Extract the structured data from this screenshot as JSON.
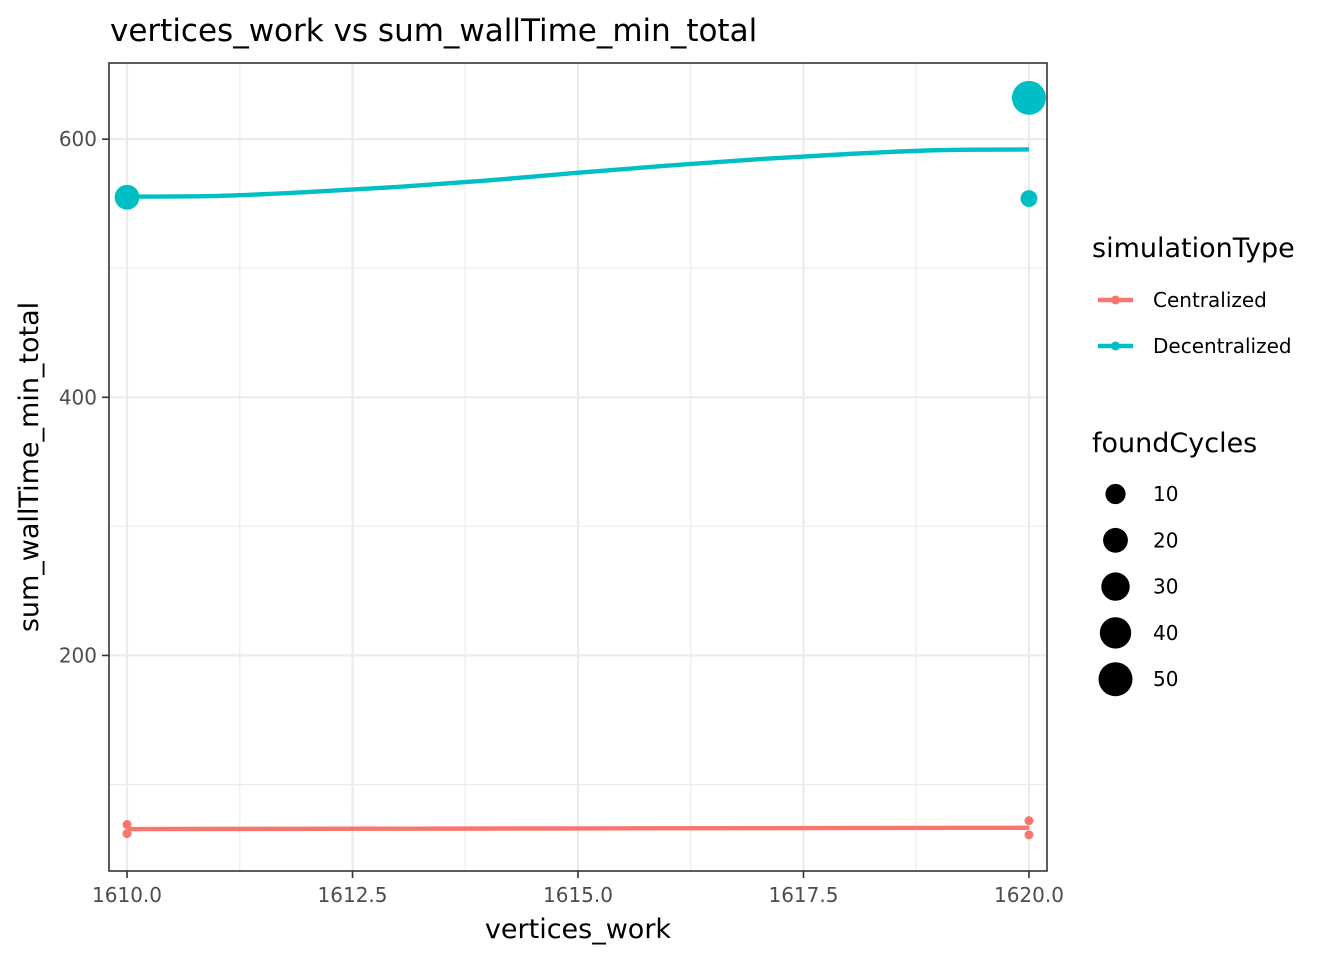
{
  "chart_data": {
    "type": "scatter",
    "title": "vertices_work  vs  sum_wallTime_min_total",
    "xlabel": "vertices_work",
    "ylabel": "sum_wallTime_min_total",
    "xlim": [
      1609.8,
      1620.2
    ],
    "ylim": [
      33,
      659
    ],
    "x_ticks": [
      1610.0,
      1612.5,
      1615.0,
      1617.5,
      1620.0
    ],
    "x_tick_labels": [
      "1610.0",
      "1612.5",
      "1615.0",
      "1617.5",
      "1620.0"
    ],
    "y_ticks": [
      200,
      400,
      600
    ],
    "y_tick_labels": [
      "200",
      "400",
      "600"
    ],
    "grid": true,
    "legend_position": "right",
    "color_legend": {
      "title": "simulationType",
      "entries": [
        {
          "label": "Centralized",
          "color": "#F8766D"
        },
        {
          "label": "Decentralized",
          "color": "#00BFC4"
        }
      ]
    },
    "size_legend": {
      "title": "foundCycles",
      "entries": [
        {
          "label": "10",
          "value": 10
        },
        {
          "label": "20",
          "value": 20
        },
        {
          "label": "30",
          "value": 30
        },
        {
          "label": "40",
          "value": 40
        },
        {
          "label": "50",
          "value": 50
        }
      ]
    },
    "series": [
      {
        "name": "Centralized",
        "color": "#F8766D",
        "points": [
          {
            "x": 1610,
            "y": 69,
            "foundCycles": 0
          },
          {
            "x": 1610,
            "y": 62,
            "foundCycles": 0
          },
          {
            "x": 1620,
            "y": 72,
            "foundCycles": 0
          },
          {
            "x": 1620,
            "y": 61,
            "foundCycles": 0
          }
        ],
        "smooth": [
          {
            "x": 1610,
            "y": 65.5
          },
          {
            "x": 1615,
            "y": 66.0
          },
          {
            "x": 1620,
            "y": 66.5
          }
        ]
      },
      {
        "name": "Decentralized",
        "color": "#00BFC4",
        "points": [
          {
            "x": 1610,
            "y": 555,
            "foundCycles": 20
          },
          {
            "x": 1620,
            "y": 632,
            "foundCycles": 50
          },
          {
            "x": 1620,
            "y": 554,
            "foundCycles": 5
          }
        ],
        "smooth": [
          {
            "x": 1610.0,
            "y": 555.5
          },
          {
            "x": 1611.0,
            "y": 556.0
          },
          {
            "x": 1612.0,
            "y": 559.0
          },
          {
            "x": 1613.0,
            "y": 563.0
          },
          {
            "x": 1614.0,
            "y": 568.0
          },
          {
            "x": 1615.0,
            "y": 574.0
          },
          {
            "x": 1616.0,
            "y": 579.5
          },
          {
            "x": 1617.0,
            "y": 584.5
          },
          {
            "x": 1618.0,
            "y": 588.5
          },
          {
            "x": 1619.0,
            "y": 591.5
          },
          {
            "x": 1620.0,
            "y": 592.0
          }
        ]
      }
    ]
  }
}
